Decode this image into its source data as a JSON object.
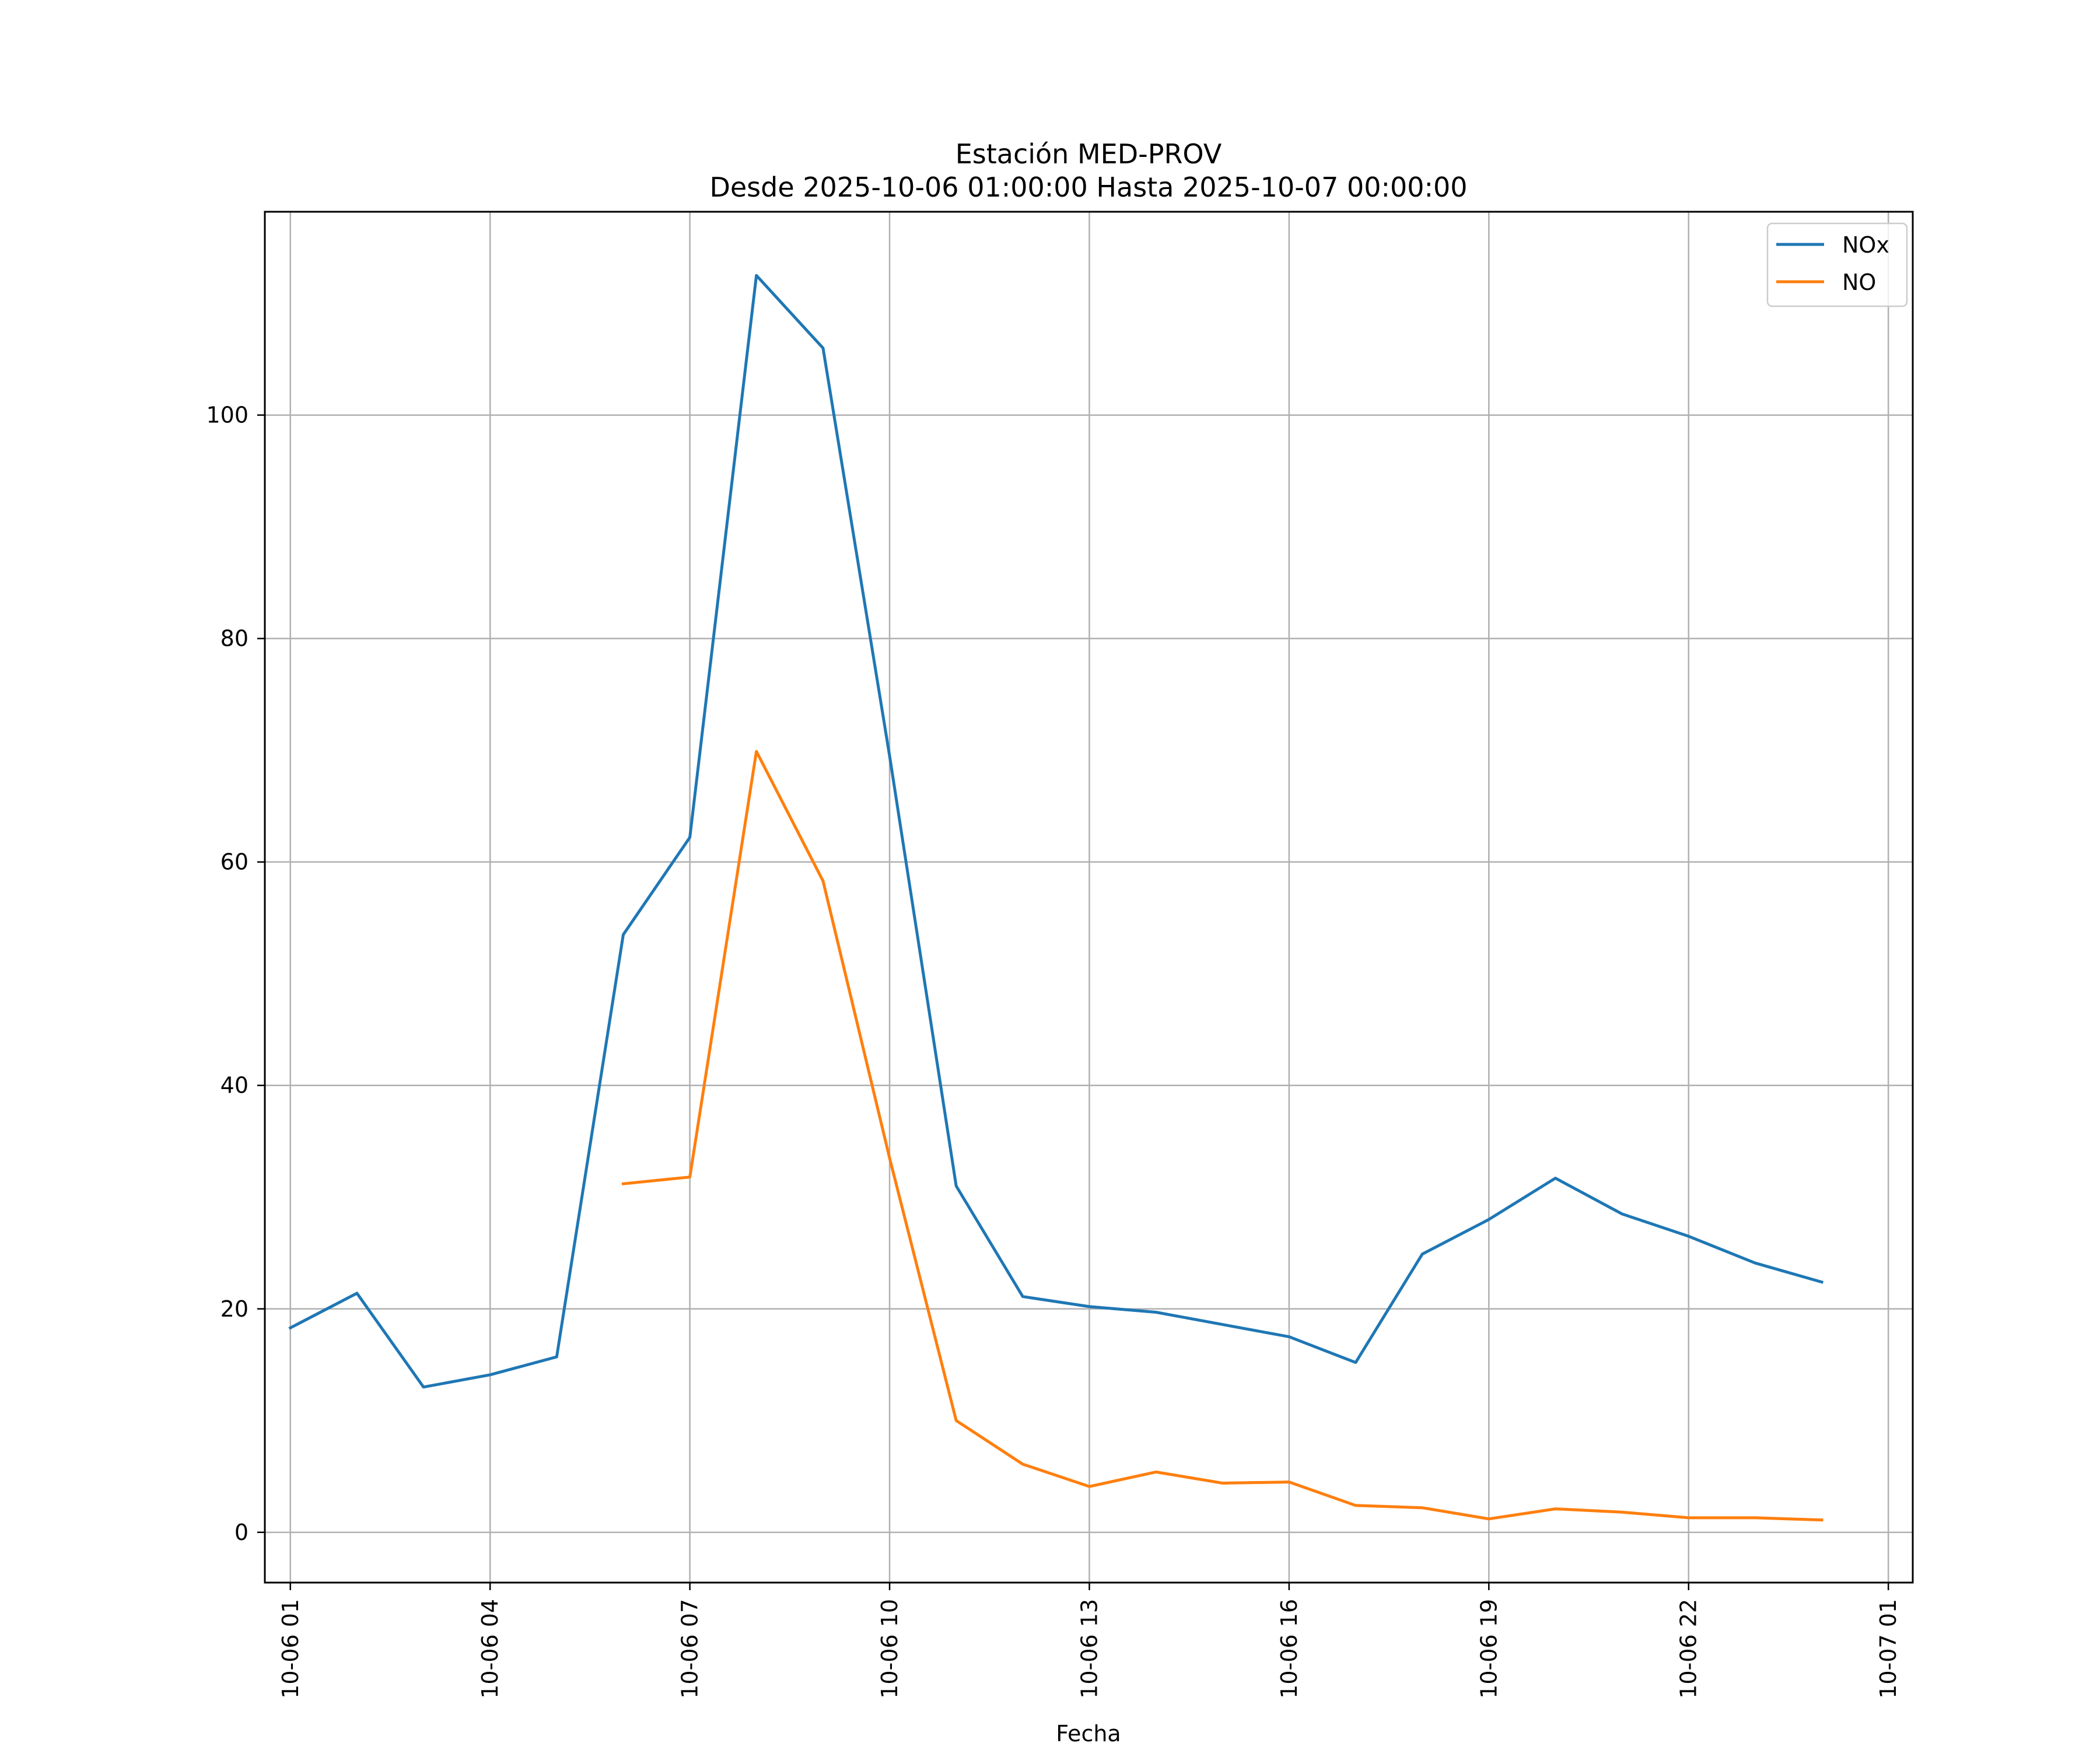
{
  "chart_data": {
    "type": "line",
    "title": "Estación MED-PROV",
    "subtitle": "Desde 2025-10-06 01:00:00 Hasta 2025-10-07 00:00:00",
    "xlabel": "Fecha",
    "ylabel": "",
    "x_range": [
      "2025-10-06 00:37",
      "2025-10-07 01:22"
    ],
    "ylim": [
      -4.5,
      118.2
    ],
    "grid": true,
    "legend_position": "top-right",
    "x_ticks": [
      {
        "x": "2025-10-06 01:00",
        "label": "10-06 01"
      },
      {
        "x": "2025-10-06 04:00",
        "label": "10-06 04"
      },
      {
        "x": "2025-10-06 07:00",
        "label": "10-06 07"
      },
      {
        "x": "2025-10-06 10:00",
        "label": "10-06 10"
      },
      {
        "x": "2025-10-06 13:00",
        "label": "10-06 13"
      },
      {
        "x": "2025-10-06 16:00",
        "label": "10-06 16"
      },
      {
        "x": "2025-10-06 19:00",
        "label": "10-06 19"
      },
      {
        "x": "2025-10-06 22:00",
        "label": "10-06 22"
      },
      {
        "x": "2025-10-07 01:00",
        "label": "10-07 01"
      }
    ],
    "y_ticks": [
      {
        "y": 0,
        "label": "0"
      },
      {
        "y": 20,
        "label": "20"
      },
      {
        "y": 40,
        "label": "40"
      },
      {
        "y": 60,
        "label": "60"
      },
      {
        "y": 80,
        "label": "80"
      },
      {
        "y": 100,
        "label": "100"
      }
    ],
    "series": [
      {
        "name": "NOx",
        "color": "#1f77b4",
        "points": [
          {
            "x": "2025-10-06 01:00",
            "y": 18.3
          },
          {
            "x": "2025-10-06 02:00",
            "y": 21.4
          },
          {
            "x": "2025-10-06 03:00",
            "y": 13.0
          },
          {
            "x": "2025-10-06 04:00",
            "y": 14.1
          },
          {
            "x": "2025-10-06 05:00",
            "y": 15.7
          },
          {
            "x": "2025-10-06 06:00",
            "y": 53.5
          },
          {
            "x": "2025-10-06 07:00",
            "y": 62.2
          },
          {
            "x": "2025-10-06 08:00",
            "y": 112.5
          },
          {
            "x": "2025-10-06 09:00",
            "y": 106.0
          },
          {
            "x": "2025-10-06 10:00",
            "y": 69.5
          },
          {
            "x": "2025-10-06 11:00",
            "y": 31.0
          },
          {
            "x": "2025-10-06 12:00",
            "y": 21.1
          },
          {
            "x": "2025-10-06 13:00",
            "y": 20.2
          },
          {
            "x": "2025-10-06 14:00",
            "y": 19.7
          },
          {
            "x": "2025-10-06 15:00",
            "y": 18.6
          },
          {
            "x": "2025-10-06 16:00",
            "y": 17.5
          },
          {
            "x": "2025-10-06 17:00",
            "y": 15.2
          },
          {
            "x": "2025-10-06 18:00",
            "y": 24.9
          },
          {
            "x": "2025-10-06 19:00",
            "y": 28.0
          },
          {
            "x": "2025-10-06 20:00",
            "y": 31.7
          },
          {
            "x": "2025-10-06 21:00",
            "y": 28.5
          },
          {
            "x": "2025-10-06 22:00",
            "y": 26.5
          },
          {
            "x": "2025-10-06 23:00",
            "y": 24.1
          },
          {
            "x": "2025-10-07 00:00",
            "y": 22.4
          }
        ]
      },
      {
        "name": "NO",
        "color": "#ff7f0e",
        "points": [
          {
            "x": "2025-10-06 06:00",
            "y": 31.2
          },
          {
            "x": "2025-10-06 07:00",
            "y": 31.8
          },
          {
            "x": "2025-10-06 08:00",
            "y": 69.9
          },
          {
            "x": "2025-10-06 09:00",
            "y": 58.3
          },
          {
            "x": "2025-10-06 10:00",
            "y": 33.5
          },
          {
            "x": "2025-10-06 11:00",
            "y": 10.0
          },
          {
            "x": "2025-10-06 12:00",
            "y": 6.1
          },
          {
            "x": "2025-10-06 13:00",
            "y": 4.1
          },
          {
            "x": "2025-10-06 14:00",
            "y": 5.4
          },
          {
            "x": "2025-10-06 15:00",
            "y": 4.4
          },
          {
            "x": "2025-10-06 16:00",
            "y": 4.5
          },
          {
            "x": "2025-10-06 17:00",
            "y": 2.4
          },
          {
            "x": "2025-10-06 18:00",
            "y": 2.2
          },
          {
            "x": "2025-10-06 19:00",
            "y": 1.2
          },
          {
            "x": "2025-10-06 20:00",
            "y": 2.1
          },
          {
            "x": "2025-10-06 21:00",
            "y": 1.8
          },
          {
            "x": "2025-10-06 22:00",
            "y": 1.3
          },
          {
            "x": "2025-10-06 23:00",
            "y": 1.3
          },
          {
            "x": "2025-10-07 00:00",
            "y": 1.1
          }
        ]
      }
    ]
  }
}
